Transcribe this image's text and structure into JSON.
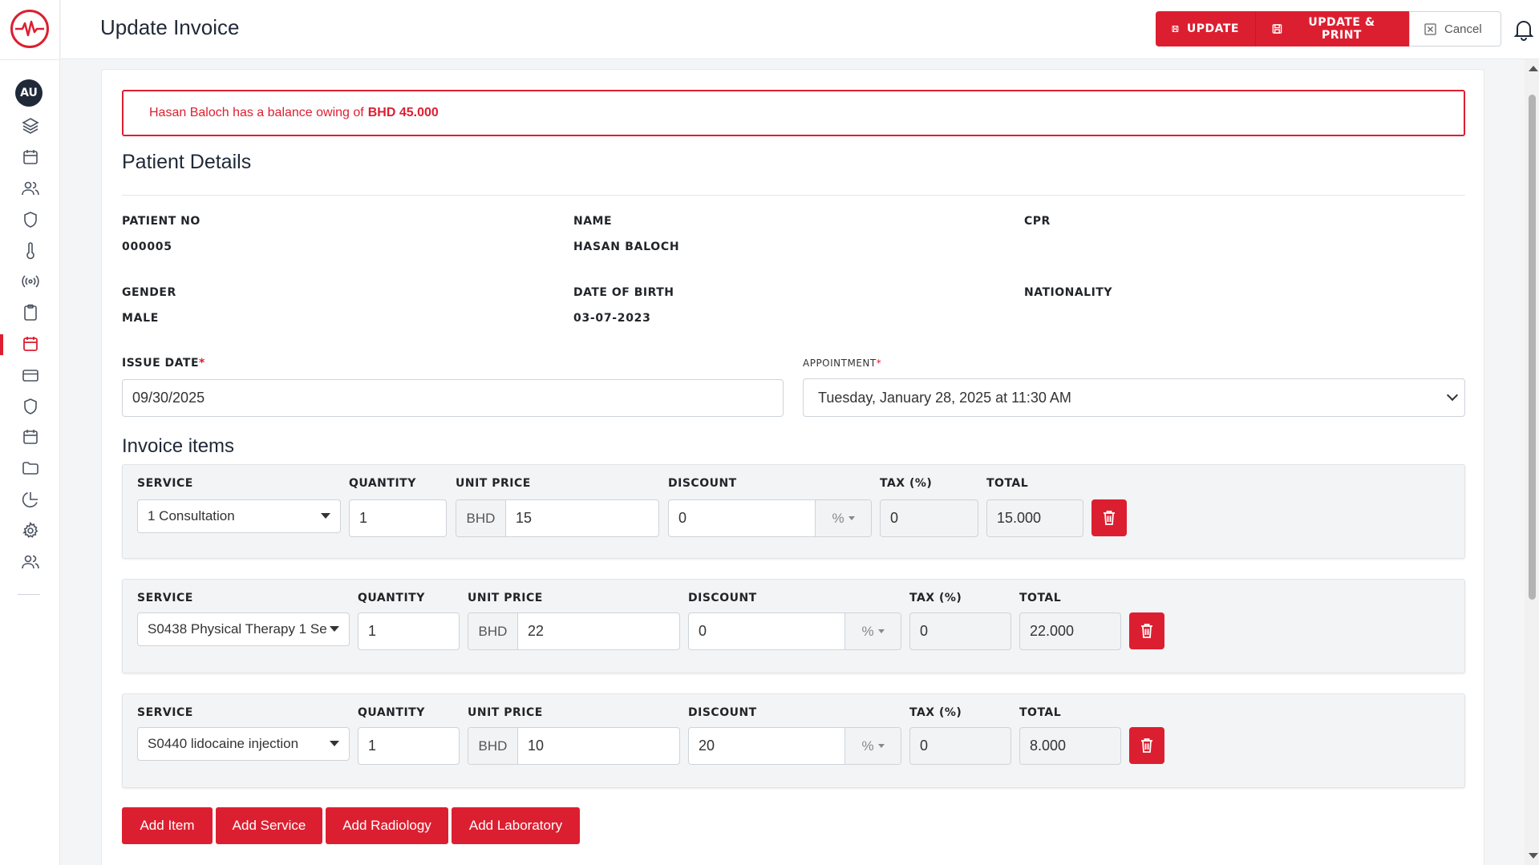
{
  "header": {
    "title": "Update Invoice",
    "update_label": "UPDATE",
    "update_print_label": "UPDATE & PRINT",
    "cancel_label": "Cancel"
  },
  "sidebar": {
    "avatar_initials": "AU",
    "items": [
      {
        "icon": "layers-icon"
      },
      {
        "icon": "calendar-icon"
      },
      {
        "icon": "users-icon"
      },
      {
        "icon": "shield-icon"
      },
      {
        "icon": "thermometer-icon"
      },
      {
        "icon": "broadcast-icon"
      },
      {
        "icon": "clipboard-icon"
      },
      {
        "icon": "calendar-icon",
        "active": true
      },
      {
        "icon": "credit-card-icon"
      },
      {
        "icon": "shield-icon"
      },
      {
        "icon": "calendar-icon"
      },
      {
        "icon": "folder-icon"
      },
      {
        "icon": "pie-chart-icon"
      },
      {
        "icon": "gear-icon"
      },
      {
        "icon": "users-icon"
      }
    ]
  },
  "alert": {
    "prefix": "Hasan Baloch has a balance owing of",
    "amount": "BHD 45.000"
  },
  "patient": {
    "section_title": "Patient Details",
    "patient_no_label": "PATIENT NO",
    "patient_no": "000005",
    "name_label": "NAME",
    "name": "HASAN BALOCH",
    "cpr_label": "CPR",
    "cpr": "",
    "gender_label": "GENDER",
    "gender": "MALE",
    "dob_label": "DATE OF BIRTH",
    "dob": "03-07-2023",
    "nationality_label": "NATIONALITY",
    "nationality": ""
  },
  "form": {
    "issue_date_label": "ISSUE DATE",
    "issue_date": "09/30/2025",
    "appointment_label": "APPOINTMENT",
    "appointment": "Tuesday, January 28, 2025 at 11:30 AM",
    "required_mark": "*"
  },
  "invoice": {
    "section_title": "Invoice items",
    "col_service": "SERVICE",
    "col_quantity": "QUANTITY",
    "col_unit_price": "UNIT PRICE",
    "col_discount": "DISCOUNT",
    "col_tax": "TAX (%)",
    "col_total": "TOTAL",
    "currency": "BHD",
    "discount_type": "%",
    "items": [
      {
        "service": "1 Consultation",
        "quantity": "1",
        "unit_price": "15",
        "discount": "0",
        "tax": "0",
        "total": "15.000"
      },
      {
        "service": "S0438 Physical Therapy 1 Se",
        "quantity": "1",
        "unit_price": "22",
        "discount": "0",
        "tax": "0",
        "total": "22.000"
      },
      {
        "service": "S0440 lidocaine injection",
        "quantity": "1",
        "unit_price": "10",
        "discount": "20",
        "tax": "0",
        "total": "8.000"
      }
    ]
  },
  "actions": {
    "add_item": "Add Item",
    "add_service": "Add Service",
    "add_radiology": "Add Radiology",
    "add_laboratory": "Add Laboratory"
  },
  "colors": {
    "accent": "#dc1f30",
    "dark": "#1f2937"
  }
}
